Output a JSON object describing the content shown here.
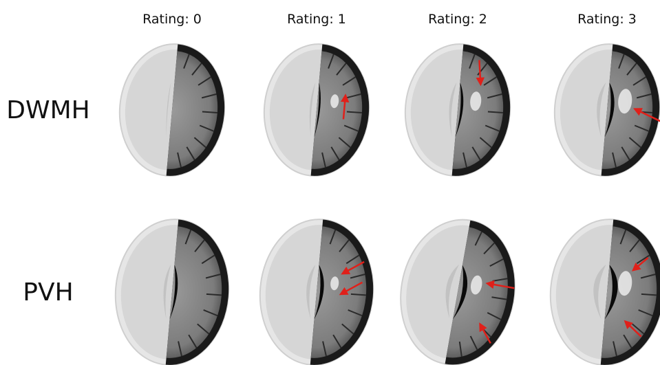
{
  "columns": [
    "Rating: 0",
    "Rating: 1",
    "Rating: 2",
    "Rating: 3"
  ],
  "rows": [
    "DWMH",
    "PVH"
  ]
}
